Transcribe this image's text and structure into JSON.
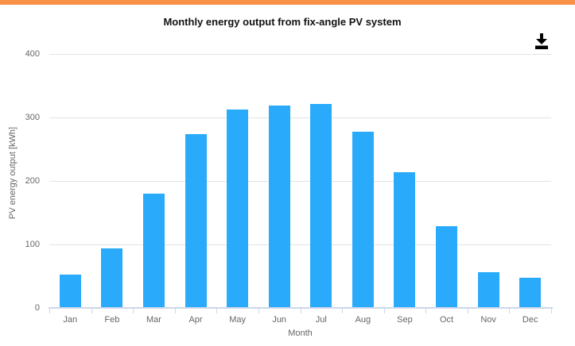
{
  "page": {
    "accent_color": "#F79148",
    "background_color": "#FFFFFF"
  },
  "toolbar": {
    "download_icon": "download-icon"
  },
  "chart_data": {
    "type": "bar",
    "title": "Monthly energy output from fix-angle PV system",
    "categories": [
      "Jan",
      "Feb",
      "Mar",
      "Apr",
      "May",
      "Jun",
      "Jul",
      "Aug",
      "Sep",
      "Oct",
      "Nov",
      "Dec"
    ],
    "values": [
      53,
      94,
      180,
      274,
      312,
      319,
      321,
      278,
      214,
      129,
      56,
      47
    ],
    "xlabel": "Month",
    "ylabel": "PV energy output [kWh]",
    "ylim": [
      0,
      400
    ],
    "yticks": [
      0,
      100,
      200,
      300,
      400
    ],
    "grid": true,
    "legend": "none",
    "colors": {
      "bar": "#29AAFB",
      "gridline": "#E3E3E3",
      "axis_line": "#CCD6EB",
      "tick_label": "#666666",
      "axis_title": "#666666",
      "title": "#111111"
    }
  }
}
